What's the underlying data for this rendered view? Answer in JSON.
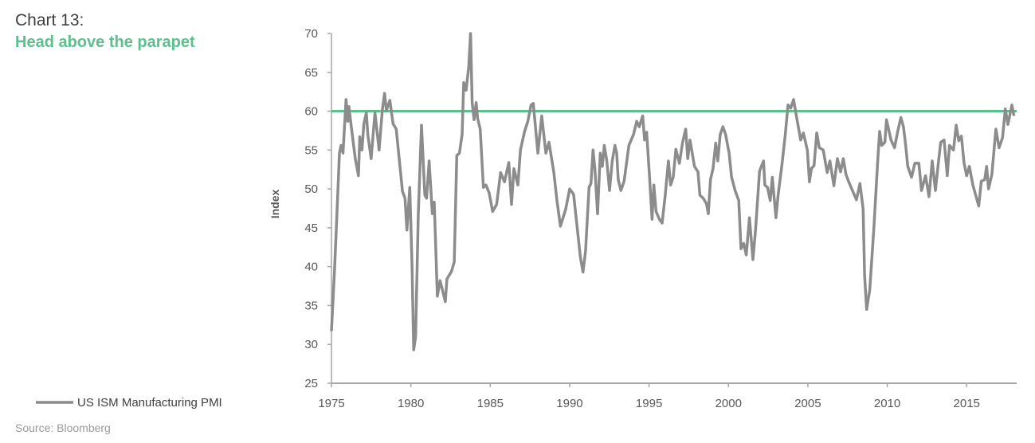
{
  "header": {
    "title": "Chart 13:",
    "subtitle": "Head above the parapet"
  },
  "source": "Source: Bloomberg",
  "colors": {
    "series": "#8c8c8c",
    "reference": "#5cc08e",
    "subtitle": "#5dbf8e",
    "axis": "#a6a6a6"
  },
  "chart_data": {
    "type": "line",
    "title": "Head above the parapet",
    "xlabel": "",
    "ylabel": "Index",
    "xlim": [
      1975,
      2018.15
    ],
    "ylim": [
      25,
      70
    ],
    "x_ticks": [
      1975,
      1980,
      1985,
      1990,
      1995,
      2000,
      2005,
      2010,
      2015
    ],
    "x_tick_labels": [
      "1975",
      "1980",
      "1985",
      "1990",
      "1995",
      "2000",
      "2005",
      "2010",
      "2015"
    ],
    "y_ticks": [
      25,
      30,
      35,
      40,
      45,
      50,
      55,
      60,
      65,
      70
    ],
    "y_tick_labels": [
      "25",
      "30",
      "35",
      "40",
      "45",
      "50",
      "55",
      "60",
      "65",
      "70"
    ],
    "grid": false,
    "legend": {
      "position": "bottom-left",
      "entries": [
        "US ISM Manufacturing PMI"
      ]
    },
    "reference_line": {
      "y": 60
    },
    "series": [
      {
        "name": "US ISM Manufacturing PMI",
        "points": [
          [
            1975.0,
            31.7
          ],
          [
            1975.2,
            39.9
          ],
          [
            1975.33,
            46.1
          ],
          [
            1975.5,
            54.6
          ],
          [
            1975.6,
            55.6
          ],
          [
            1975.73,
            54.6
          ],
          [
            1975.92,
            61.5
          ],
          [
            1976.03,
            58.7
          ],
          [
            1976.1,
            60.6
          ],
          [
            1976.25,
            58.0
          ],
          [
            1976.5,
            53.9
          ],
          [
            1976.7,
            51.7
          ],
          [
            1976.78,
            56.7
          ],
          [
            1976.92,
            55.0
          ],
          [
            1977.04,
            58.4
          ],
          [
            1977.2,
            59.8
          ],
          [
            1977.29,
            57.0
          ],
          [
            1977.5,
            53.9
          ],
          [
            1977.74,
            59.8
          ],
          [
            1978.0,
            55.0
          ],
          [
            1978.2,
            60.1
          ],
          [
            1978.34,
            62.3
          ],
          [
            1978.46,
            60.1
          ],
          [
            1978.68,
            61.4
          ],
          [
            1978.88,
            58.4
          ],
          [
            1979.08,
            57.7
          ],
          [
            1979.47,
            49.7
          ],
          [
            1979.63,
            48.8
          ],
          [
            1979.75,
            44.7
          ],
          [
            1979.93,
            50.2
          ],
          [
            1980.08,
            39.9
          ],
          [
            1980.18,
            29.3
          ],
          [
            1980.3,
            31.0
          ],
          [
            1980.47,
            46.8
          ],
          [
            1980.67,
            58.2
          ],
          [
            1980.88,
            49.2
          ],
          [
            1980.99,
            48.8
          ],
          [
            1981.15,
            53.6
          ],
          [
            1981.35,
            46.8
          ],
          [
            1981.47,
            48.3
          ],
          [
            1981.67,
            36.2
          ],
          [
            1981.84,
            38.2
          ],
          [
            1982.0,
            36.9
          ],
          [
            1982.17,
            35.5
          ],
          [
            1982.27,
            38.4
          ],
          [
            1982.56,
            39.4
          ],
          [
            1982.73,
            40.6
          ],
          [
            1982.89,
            54.3
          ],
          [
            1983.06,
            54.6
          ],
          [
            1983.23,
            57.0
          ],
          [
            1983.33,
            63.7
          ],
          [
            1983.48,
            62.7
          ],
          [
            1983.64,
            65.6
          ],
          [
            1983.76,
            70.0
          ],
          [
            1983.86,
            61.1
          ],
          [
            1983.98,
            58.9
          ],
          [
            1984.11,
            61.1
          ],
          [
            1984.2,
            59.1
          ],
          [
            1984.37,
            57.7
          ],
          [
            1984.57,
            50.2
          ],
          [
            1984.73,
            50.5
          ],
          [
            1984.93,
            49.5
          ],
          [
            1985.15,
            47.1
          ],
          [
            1985.4,
            48.0
          ],
          [
            1985.65,
            52.1
          ],
          [
            1985.9,
            50.9
          ],
          [
            1986.17,
            53.4
          ],
          [
            1986.34,
            48.0
          ],
          [
            1986.49,
            52.6
          ],
          [
            1986.74,
            50.5
          ],
          [
            1986.9,
            55.0
          ],
          [
            1987.16,
            57.4
          ],
          [
            1987.37,
            58.7
          ],
          [
            1987.57,
            60.8
          ],
          [
            1987.71,
            61.0
          ],
          [
            1988.0,
            54.6
          ],
          [
            1988.24,
            59.4
          ],
          [
            1988.5,
            54.6
          ],
          [
            1988.7,
            56.0
          ],
          [
            1989.0,
            52.2
          ],
          [
            1989.2,
            48.5
          ],
          [
            1989.42,
            45.2
          ],
          [
            1989.75,
            47.4
          ],
          [
            1990.0,
            50.0
          ],
          [
            1990.25,
            49.3
          ],
          [
            1990.42,
            46.1
          ],
          [
            1990.67,
            41.3
          ],
          [
            1990.84,
            39.3
          ],
          [
            1991.0,
            42.0
          ],
          [
            1991.22,
            50.2
          ],
          [
            1991.34,
            50.7
          ],
          [
            1991.47,
            55.0
          ],
          [
            1991.59,
            52.6
          ],
          [
            1991.76,
            46.8
          ],
          [
            1991.93,
            54.6
          ],
          [
            1992.06,
            52.9
          ],
          [
            1992.18,
            55.6
          ],
          [
            1992.34,
            53.6
          ],
          [
            1992.51,
            49.8
          ],
          [
            1992.68,
            53.6
          ],
          [
            1992.85,
            55.6
          ],
          [
            1992.96,
            54.6
          ],
          [
            1993.06,
            51.2
          ],
          [
            1993.23,
            49.8
          ],
          [
            1993.43,
            51.0
          ],
          [
            1993.6,
            53.6
          ],
          [
            1993.73,
            55.6
          ],
          [
            1994.02,
            57.0
          ],
          [
            1994.22,
            58.7
          ],
          [
            1994.38,
            58.0
          ],
          [
            1994.6,
            59.4
          ],
          [
            1994.72,
            56.3
          ],
          [
            1994.85,
            57.3
          ],
          [
            1995.02,
            51.9
          ],
          [
            1995.19,
            46.1
          ],
          [
            1995.3,
            50.5
          ],
          [
            1995.44,
            47.1
          ],
          [
            1995.65,
            46.1
          ],
          [
            1995.82,
            45.6
          ],
          [
            1996.02,
            49.2
          ],
          [
            1996.22,
            53.6
          ],
          [
            1996.36,
            50.5
          ],
          [
            1996.52,
            51.5
          ],
          [
            1996.69,
            55.1
          ],
          [
            1996.91,
            53.3
          ],
          [
            1997.11,
            56.0
          ],
          [
            1997.31,
            57.7
          ],
          [
            1997.44,
            53.9
          ],
          [
            1997.58,
            56.3
          ],
          [
            1997.86,
            52.9
          ],
          [
            1998.08,
            52.2
          ],
          [
            1998.2,
            49.2
          ],
          [
            1998.41,
            48.8
          ],
          [
            1998.61,
            48.1
          ],
          [
            1998.73,
            46.8
          ],
          [
            1998.87,
            51.2
          ],
          [
            1999.03,
            52.6
          ],
          [
            1999.2,
            55.9
          ],
          [
            1999.33,
            53.6
          ],
          [
            1999.48,
            57.0
          ],
          [
            1999.65,
            58.0
          ],
          [
            1999.82,
            57.0
          ],
          [
            2000.04,
            54.6
          ],
          [
            2000.2,
            51.5
          ],
          [
            2000.42,
            49.8
          ],
          [
            2000.65,
            48.5
          ],
          [
            2000.79,
            42.3
          ],
          [
            2000.96,
            43.0
          ],
          [
            2001.12,
            41.5
          ],
          [
            2001.32,
            46.3
          ],
          [
            2001.54,
            40.9
          ],
          [
            2001.71,
            44.8
          ],
          [
            2001.96,
            52.3
          ],
          [
            2002.21,
            53.6
          ],
          [
            2002.29,
            50.5
          ],
          [
            2002.46,
            50.2
          ],
          [
            2002.63,
            48.5
          ],
          [
            2002.76,
            51.5
          ],
          [
            2002.99,
            46.3
          ],
          [
            2003.13,
            49.2
          ],
          [
            2003.38,
            53.3
          ],
          [
            2003.58,
            57.0
          ],
          [
            2003.75,
            60.8
          ],
          [
            2003.92,
            60.4
          ],
          [
            2004.1,
            61.5
          ],
          [
            2004.3,
            59.1
          ],
          [
            2004.55,
            56.3
          ],
          [
            2004.72,
            57.2
          ],
          [
            2004.97,
            55.0
          ],
          [
            2005.1,
            50.9
          ],
          [
            2005.22,
            52.6
          ],
          [
            2005.39,
            53.0
          ],
          [
            2005.56,
            57.2
          ],
          [
            2005.72,
            55.3
          ],
          [
            2005.97,
            55.0
          ],
          [
            2006.22,
            52.1
          ],
          [
            2006.39,
            53.6
          ],
          [
            2006.64,
            50.4
          ],
          [
            2006.86,
            53.9
          ],
          [
            2007.06,
            52.2
          ],
          [
            2007.23,
            53.9
          ],
          [
            2007.4,
            51.9
          ],
          [
            2007.56,
            51.0
          ],
          [
            2007.81,
            49.8
          ],
          [
            2008.06,
            48.6
          ],
          [
            2008.28,
            50.7
          ],
          [
            2008.48,
            47.4
          ],
          [
            2008.57,
            38.9
          ],
          [
            2008.7,
            34.5
          ],
          [
            2008.9,
            37.0
          ],
          [
            2009.15,
            44.7
          ],
          [
            2009.4,
            53.6
          ],
          [
            2009.52,
            57.4
          ],
          [
            2009.65,
            55.6
          ],
          [
            2009.85,
            56.0
          ],
          [
            2009.95,
            58.9
          ],
          [
            2010.24,
            56.3
          ],
          [
            2010.46,
            55.3
          ],
          [
            2010.66,
            57.4
          ],
          [
            2010.86,
            59.2
          ],
          [
            2011.02,
            58.0
          ],
          [
            2011.16,
            55.6
          ],
          [
            2011.29,
            52.9
          ],
          [
            2011.53,
            51.5
          ],
          [
            2011.74,
            53.3
          ],
          [
            2011.99,
            53.3
          ],
          [
            2012.16,
            49.8
          ],
          [
            2012.41,
            51.7
          ],
          [
            2012.63,
            49.0
          ],
          [
            2012.83,
            53.6
          ],
          [
            2013.03,
            49.8
          ],
          [
            2013.25,
            53.9
          ],
          [
            2013.37,
            56.0
          ],
          [
            2013.58,
            56.3
          ],
          [
            2013.78,
            51.7
          ],
          [
            2013.92,
            55.6
          ],
          [
            2014.17,
            55.0
          ],
          [
            2014.34,
            58.2
          ],
          [
            2014.5,
            56.2
          ],
          [
            2014.67,
            56.8
          ],
          [
            2014.84,
            53.3
          ],
          [
            2015.0,
            51.7
          ],
          [
            2015.17,
            52.9
          ],
          [
            2015.39,
            50.5
          ],
          [
            2015.76,
            47.8
          ],
          [
            2015.92,
            51.0
          ],
          [
            2016.14,
            51.2
          ],
          [
            2016.26,
            52.9
          ],
          [
            2016.38,
            50.0
          ],
          [
            2016.59,
            51.9
          ],
          [
            2016.84,
            57.7
          ],
          [
            2017.04,
            55.3
          ],
          [
            2017.26,
            56.6
          ],
          [
            2017.43,
            60.3
          ],
          [
            2017.6,
            58.3
          ],
          [
            2017.85,
            60.8
          ],
          [
            2017.98,
            59.4
          ]
        ]
      }
    ]
  }
}
